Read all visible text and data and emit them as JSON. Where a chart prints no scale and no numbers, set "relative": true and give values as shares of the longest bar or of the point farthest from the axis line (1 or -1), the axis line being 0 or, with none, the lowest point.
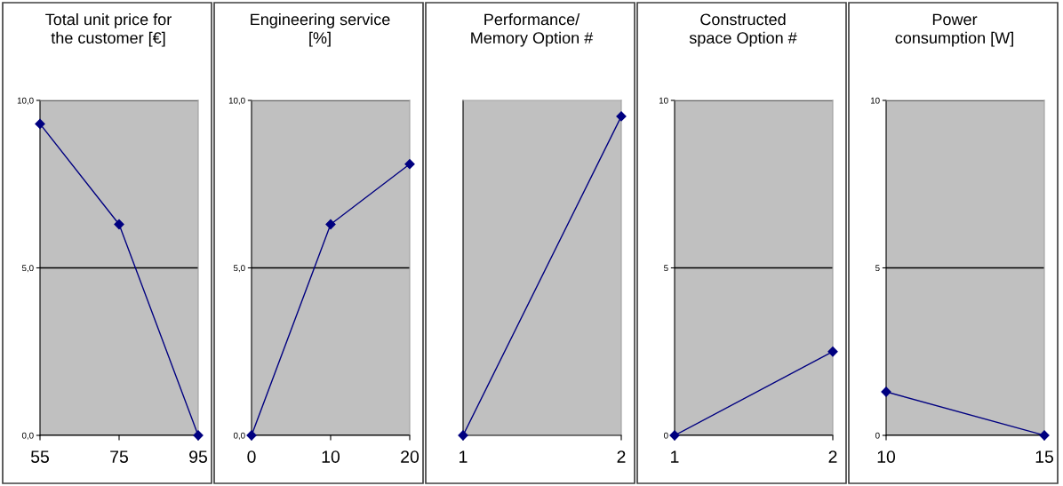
{
  "chart_data": [
    {
      "type": "line",
      "title": "Total unit price for\nthe customer [€]",
      "x": [
        55,
        75,
        95
      ],
      "xlim": [
        55,
        95
      ],
      "xticks": [
        55,
        75,
        95
      ],
      "ylim": [
        0,
        10
      ],
      "yticks": [
        {
          "value": 0,
          "label": "0,0"
        },
        {
          "value": 5,
          "label": "5,0"
        },
        {
          "value": 10,
          "label": "10,0"
        }
      ],
      "grid": "y",
      "marker": "diamond",
      "series": [
        {
          "color": "#000080",
          "values": [
            9.3,
            6.3,
            0
          ]
        }
      ]
    },
    {
      "type": "line",
      "title": "Engineering service\n[%]",
      "x": [
        0,
        10,
        20
      ],
      "xlim": [
        0,
        20
      ],
      "xticks": [
        0,
        10,
        20
      ],
      "ylim": [
        0,
        10
      ],
      "yticks": [
        {
          "value": 0,
          "label": "0,0"
        },
        {
          "value": 5,
          "label": "5,0"
        },
        {
          "value": 10,
          "label": "10,0"
        }
      ],
      "grid": "y",
      "marker": "diamond",
      "series": [
        {
          "color": "#000080",
          "values": [
            0,
            6.3,
            8.1
          ]
        }
      ]
    },
    {
      "type": "line",
      "title": "Performance/\nMemory Option #",
      "x": [
        1,
        2
      ],
      "xlim": [
        1,
        2
      ],
      "xticks": [
        1,
        2
      ],
      "relative": true,
      "marker": "diamond",
      "series": [
        {
          "color": "#000080",
          "values": [
            0,
            1
          ]
        }
      ]
    },
    {
      "type": "line",
      "title": "Constructed\nspace Option #",
      "x": [
        1,
        2
      ],
      "xlim": [
        1,
        2
      ],
      "xticks": [
        1,
        2
      ],
      "ylim": [
        0,
        10
      ],
      "yticks": [
        0,
        5,
        10
      ],
      "grid": "y",
      "marker": "diamond",
      "series": [
        {
          "color": "#000080",
          "values": [
            0,
            2.5
          ]
        }
      ]
    },
    {
      "type": "line",
      "title": "Power\nconsumption [W]",
      "x": [
        10,
        15
      ],
      "xlim": [
        10,
        15
      ],
      "xticks": [
        10,
        15
      ],
      "ylim": [
        0,
        10
      ],
      "yticks": [
        0,
        5,
        10
      ],
      "grid": "y",
      "marker": "diamond",
      "series": [
        {
          "color": "#000080",
          "values": [
            1.3,
            0
          ]
        }
      ]
    }
  ]
}
